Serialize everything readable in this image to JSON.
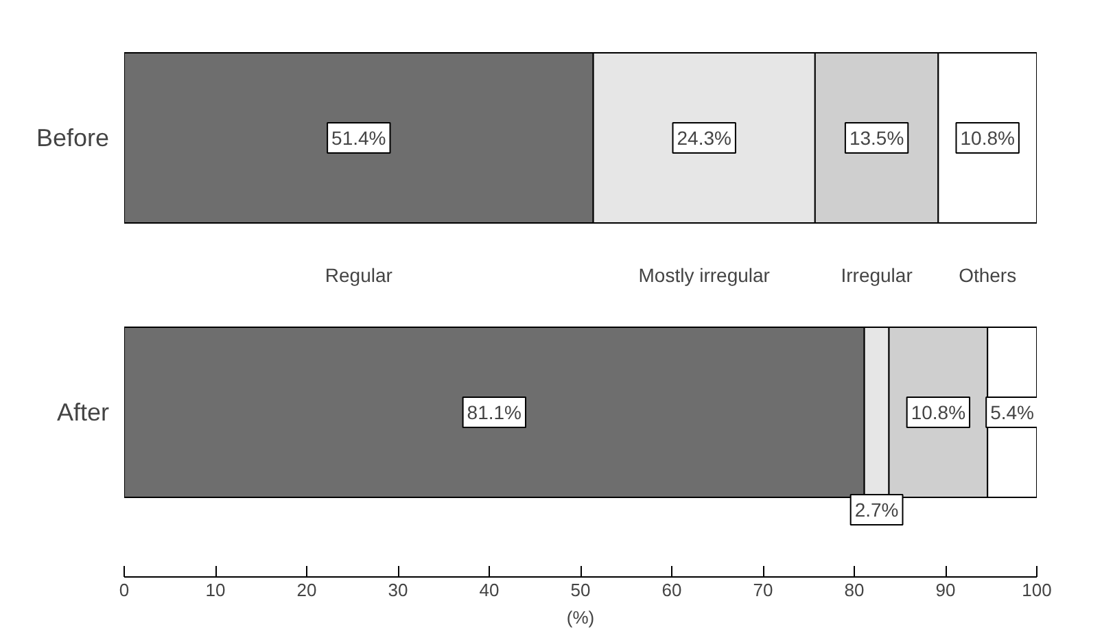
{
  "chart_data": {
    "type": "bar",
    "orientation": "horizontal",
    "stacked": true,
    "categories": [
      "Before",
      "After"
    ],
    "xlabel": "(%)",
    "xlim": [
      0,
      100
    ],
    "xticks": [
      0,
      10,
      20,
      30,
      40,
      50,
      60,
      70,
      80,
      90,
      100
    ],
    "grid": false,
    "series": [
      {
        "name": "Regular",
        "color": "#6e6e6e",
        "values": [
          51.4,
          81.1
        ],
        "value_labels": [
          "51.4%",
          "81.1%"
        ]
      },
      {
        "name": "Mostly irregular",
        "color": "#e6e6e6",
        "values": [
          24.3,
          2.7
        ],
        "value_labels": [
          "24.3%",
          "2.7%"
        ]
      },
      {
        "name": "Irregular",
        "color": "#cfcfcf",
        "values": [
          13.5,
          10.8
        ],
        "value_labels": [
          "13.5%",
          "10.8%"
        ]
      },
      {
        "name": "Others",
        "color": "#ffffff",
        "values": [
          10.8,
          5.4
        ],
        "value_labels": [
          "10.8%",
          "5.4%"
        ]
      }
    ]
  }
}
